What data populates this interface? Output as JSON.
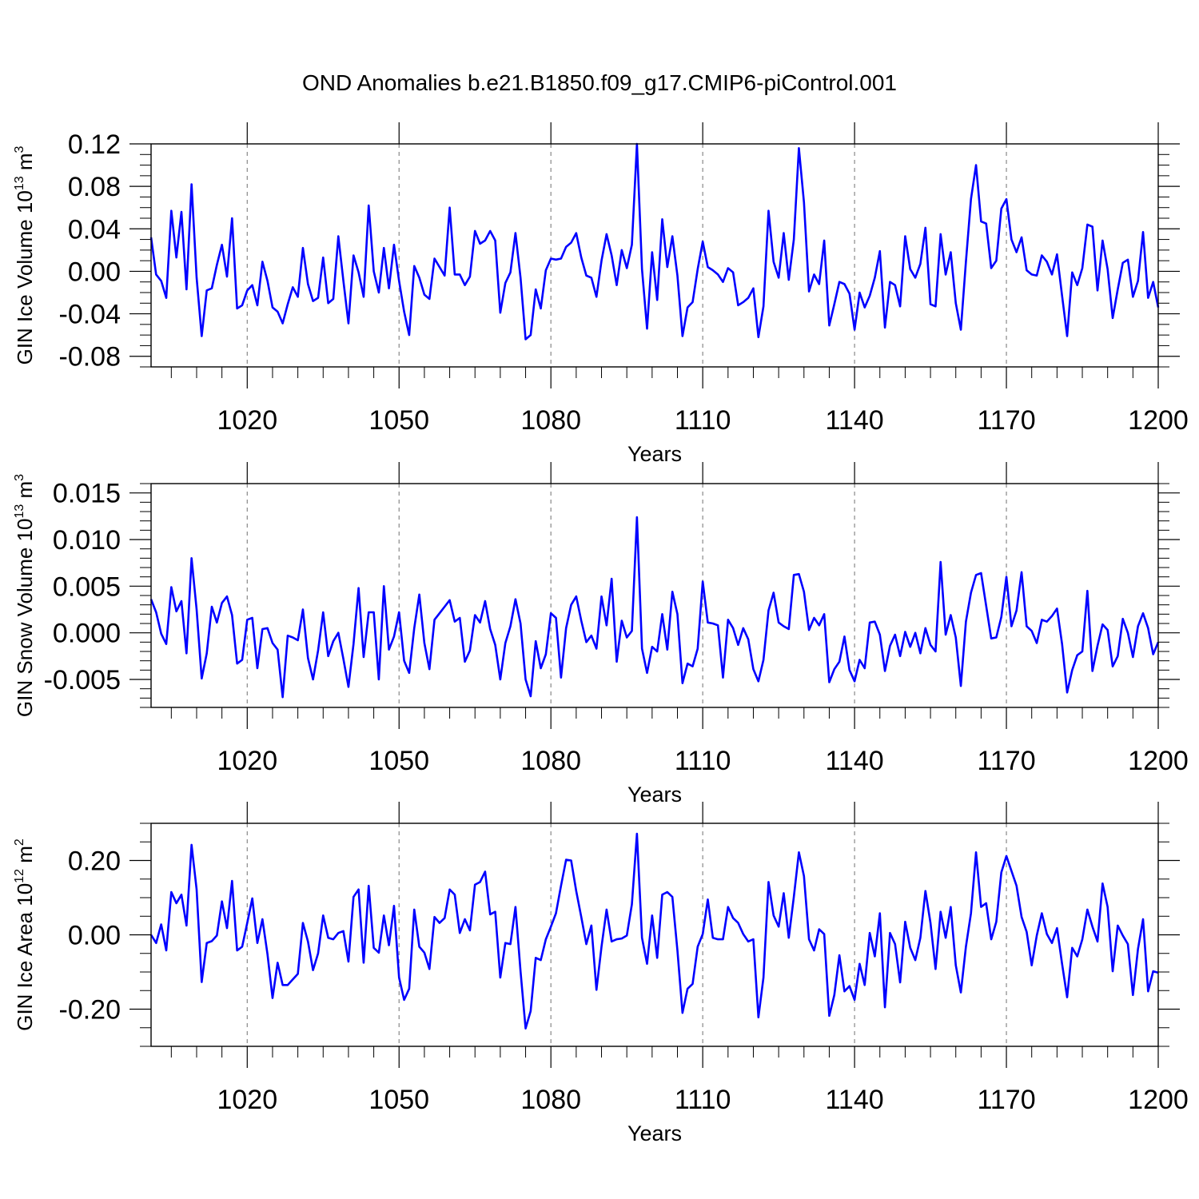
{
  "title": "OND Anomalies b.e21.B1850.f09_g17.CMIP6-piControl.001",
  "chart_data": [
    {
      "type": "line",
      "name": "ice-volume",
      "ylabel": "GIN Ice Volume 10",
      "ylabel_exp": "13",
      "ylabel_unit": " m",
      "ylabel_unit_exp": "3",
      "xlabel": "Years",
      "xlim": [
        1001,
        1200
      ],
      "ylim": [
        -0.09,
        0.12
      ],
      "yticks": [
        -0.08,
        -0.04,
        0.0,
        0.04,
        0.08,
        0.12
      ],
      "ytick_labels": [
        "-0.08",
        "-0.04",
        "0.00",
        "0.04",
        "0.08",
        "0.12"
      ],
      "yminor_step": 0.01,
      "xticks": [
        1020,
        1050,
        1080,
        1110,
        1140,
        1170,
        1200
      ],
      "xtick_labels": [
        "1020",
        "1050",
        "1080",
        "1110",
        "1140",
        "1170",
        "1200"
      ],
      "color": "#0000ff",
      "x_start": 1001,
      "values": [
        0.032,
        -0.003,
        -0.009,
        -0.025,
        0.057,
        0.013,
        0.056,
        -0.017,
        0.082,
        -0.006,
        -0.061,
        -0.018,
        -0.016,
        0.006,
        0.025,
        -0.005,
        0.05,
        -0.035,
        -0.032,
        -0.018,
        -0.013,
        -0.032,
        0.009,
        -0.009,
        -0.034,
        -0.038,
        -0.049,
        -0.031,
        -0.015,
        -0.024,
        0.022,
        -0.012,
        -0.028,
        -0.025,
        0.013,
        -0.03,
        -0.026,
        0.033,
        -0.009,
        -0.049,
        0.015,
        -0.001,
        -0.024,
        0.062,
        0.0,
        -0.02,
        0.022,
        -0.016,
        0.025,
        -0.009,
        -0.038,
        -0.06,
        0.005,
        -0.006,
        -0.022,
        -0.026,
        0.012,
        0.004,
        -0.004,
        0.06,
        -0.003,
        -0.003,
        -0.013,
        -0.005,
        0.038,
        0.026,
        0.029,
        0.038,
        0.029,
        -0.039,
        -0.011,
        -0.001,
        0.036,
        -0.006,
        -0.064,
        -0.06,
        -0.017,
        -0.035,
        0.001,
        0.012,
        0.011,
        0.012,
        0.023,
        0.027,
        0.036,
        0.013,
        -0.004,
        -0.006,
        -0.024,
        0.01,
        0.035,
        0.015,
        -0.013,
        0.02,
        0.003,
        0.025,
        0.12,
        0.002,
        -0.054,
        0.018,
        -0.027,
        0.049,
        0.004,
        0.033,
        -0.004,
        -0.061,
        -0.034,
        -0.029,
        0.002,
        0.028,
        0.004,
        0.001,
        -0.003,
        -0.01,
        0.003,
        -0.001,
        -0.032,
        -0.029,
        -0.025,
        -0.016,
        -0.062,
        -0.033,
        0.057,
        0.009,
        -0.006,
        0.036,
        -0.008,
        0.03,
        0.116,
        0.065,
        -0.019,
        -0.003,
        -0.012,
        0.029,
        -0.051,
        -0.031,
        -0.01,
        -0.012,
        -0.021,
        -0.055,
        -0.02,
        -0.034,
        -0.023,
        -0.006,
        0.019,
        -0.053,
        -0.01,
        -0.013,
        -0.033,
        0.033,
        0.002,
        -0.006,
        0.007,
        0.041,
        -0.031,
        -0.033,
        0.035,
        -0.003,
        0.018,
        -0.03,
        -0.055,
        0.009,
        0.068,
        0.1,
        0.047,
        0.045,
        0.003,
        0.01,
        0.059,
        0.068,
        0.03,
        0.018,
        0.032,
        0.001,
        -0.003,
        -0.004,
        0.015,
        0.009,
        -0.003,
        0.016,
        -0.023,
        -0.061,
        -0.001,
        -0.013,
        0.003,
        0.044,
        0.042,
        -0.018,
        0.029,
        0.002,
        -0.044,
        -0.017,
        0.008,
        0.011,
        -0.024,
        -0.009,
        0.037,
        -0.025,
        -0.01,
        -0.034
      ]
    },
    {
      "type": "line",
      "name": "snow-volume",
      "ylabel": "GIN Snow Volume 10",
      "ylabel_exp": "13",
      "ylabel_unit": " m",
      "ylabel_unit_exp": "3",
      "xlabel": "Years",
      "xlim": [
        1001,
        1200
      ],
      "ylim": [
        -0.008,
        0.016
      ],
      "yticks": [
        -0.005,
        0.0,
        0.005,
        0.01,
        0.015
      ],
      "ytick_labels": [
        "-0.005",
        "0.000",
        "0.005",
        "0.010",
        "0.015"
      ],
      "yminor_step": 0.001,
      "xticks": [
        1020,
        1050,
        1080,
        1110,
        1140,
        1170,
        1200
      ],
      "xtick_labels": [
        "1020",
        "1050",
        "1080",
        "1110",
        "1140",
        "1170",
        "1200"
      ],
      "color": "#0000ff",
      "x_start": 1001,
      "values": [
        0.0036,
        0.0022,
        -0.0001,
        -0.0012,
        0.0049,
        0.0023,
        0.0034,
        -0.0022,
        0.008,
        0.0025,
        -0.0049,
        -0.0022,
        0.0028,
        0.0011,
        0.0032,
        0.0039,
        0.0019,
        -0.0033,
        -0.0029,
        0.0014,
        0.0016,
        -0.0038,
        0.0004,
        0.0005,
        -0.0011,
        -0.0018,
        -0.0069,
        -0.0003,
        -0.0005,
        -0.0008,
        0.0025,
        -0.0027,
        -0.005,
        -0.0019,
        0.0022,
        -0.0025,
        -0.0009,
        0.0,
        -0.0028,
        -0.0058,
        -0.0012,
        0.0048,
        -0.0026,
        0.0022,
        0.0022,
        -0.005,
        0.005,
        -0.0018,
        -0.0004,
        0.0022,
        -0.003,
        -0.0043,
        0.0005,
        0.0041,
        -0.0011,
        -0.0039,
        0.0014,
        0.0021,
        0.0028,
        0.0035,
        0.0012,
        0.0016,
        -0.0031,
        -0.0019,
        0.0019,
        0.0011,
        0.0034,
        0.0004,
        -0.0013,
        -0.005,
        -0.0011,
        0.0007,
        0.0036,
        0.001,
        -0.005,
        -0.0068,
        -0.0009,
        -0.0038,
        -0.0023,
        0.0021,
        0.0016,
        -0.0048,
        0.0005,
        0.003,
        0.0039,
        0.0013,
        -0.001,
        -0.0003,
        -0.0017,
        0.0039,
        0.0008,
        0.0058,
        -0.0031,
        0.0013,
        -0.0005,
        0.0002,
        0.0124,
        -0.0017,
        -0.0043,
        -0.0015,
        -0.002,
        0.002,
        -0.0018,
        0.0044,
        0.002,
        -0.0054,
        -0.0033,
        -0.0036,
        -0.0017,
        0.0055,
        0.0011,
        0.001,
        0.0008,
        -0.0048,
        0.0014,
        0.0005,
        -0.0013,
        0.0005,
        -0.0007,
        -0.0039,
        -0.0052,
        -0.0029,
        0.0024,
        0.0043,
        0.0011,
        0.0007,
        0.0004,
        0.0062,
        0.0063,
        0.0044,
        0.0003,
        0.0016,
        0.0008,
        0.002,
        -0.0053,
        -0.0039,
        -0.0031,
        -0.0004,
        -0.004,
        -0.0052,
        -0.0029,
        -0.0038,
        0.0011,
        0.0012,
        -0.0002,
        -0.0041,
        -0.0014,
        -0.0002,
        -0.0025,
        0.0001,
        -0.0015,
        0.0,
        -0.0022,
        0.0005,
        -0.0013,
        -0.002,
        0.0076,
        -0.0002,
        0.0019,
        -0.0005,
        -0.0057,
        0.0012,
        0.0043,
        0.0062,
        0.0064,
        0.0029,
        -0.0006,
        -0.0005,
        0.0017,
        0.006,
        0.0007,
        0.0024,
        0.0065,
        0.0007,
        0.0002,
        -0.0011,
        0.0014,
        0.0012,
        0.0018,
        0.0026,
        -0.0012,
        -0.0064,
        -0.004,
        -0.0024,
        -0.002,
        0.0045,
        -0.0041,
        -0.0014,
        0.0009,
        0.0003,
        -0.0036,
        -0.0025,
        0.0015,
        0.0,
        -0.0026,
        0.0007,
        0.0021,
        0.0005,
        -0.0023,
        -0.001
      ]
    },
    {
      "type": "line",
      "name": "ice-area",
      "ylabel": "GIN Ice Area 10",
      "ylabel_exp": "12",
      "ylabel_unit": " m",
      "ylabel_unit_exp": "2",
      "xlabel": "Years",
      "xlim": [
        1001,
        1200
      ],
      "ylim": [
        -0.3,
        0.3
      ],
      "yticks": [
        -0.2,
        0.0,
        0.2
      ],
      "ytick_labels": [
        "-0.20",
        "0.00",
        "0.20"
      ],
      "yminor_step": 0.05,
      "xticks": [
        1020,
        1050,
        1080,
        1110,
        1140,
        1170,
        1200
      ],
      "xtick_labels": [
        "1020",
        "1050",
        "1080",
        "1110",
        "1140",
        "1170",
        "1200"
      ],
      "color": "#0000ff",
      "x_start": 1001,
      "values": [
        0.0,
        -0.022,
        0.028,
        -0.042,
        0.115,
        0.085,
        0.108,
        0.025,
        0.242,
        0.122,
        -0.127,
        -0.022,
        -0.017,
        -0.002,
        0.09,
        0.018,
        0.145,
        -0.042,
        -0.032,
        0.032,
        0.098,
        -0.022,
        0.042,
        -0.052,
        -0.17,
        -0.075,
        -0.135,
        -0.135,
        -0.12,
        -0.105,
        0.032,
        -0.018,
        -0.095,
        -0.05,
        0.052,
        -0.008,
        -0.012,
        0.005,
        0.01,
        -0.072,
        0.102,
        0.122,
        -0.075,
        0.132,
        -0.035,
        -0.048,
        0.052,
        -0.028,
        0.078,
        -0.115,
        -0.175,
        -0.145,
        0.068,
        -0.032,
        -0.048,
        -0.092,
        0.048,
        0.032,
        0.045,
        0.122,
        0.108,
        0.005,
        0.042,
        0.012,
        0.135,
        0.142,
        0.17,
        0.055,
        0.062,
        -0.115,
        -0.022,
        -0.025,
        0.075,
        -0.098,
        -0.252,
        -0.205,
        -0.062,
        -0.068,
        -0.012,
        0.022,
        0.058,
        0.132,
        0.202,
        0.2,
        0.118,
        0.048,
        -0.025,
        0.025,
        -0.148,
        -0.032,
        0.068,
        -0.018,
        -0.012,
        -0.01,
        -0.002,
        0.082,
        0.272,
        -0.008,
        -0.078,
        0.052,
        -0.062,
        0.108,
        0.115,
        0.102,
        -0.042,
        -0.21,
        -0.145,
        -0.132,
        -0.032,
        0.002,
        0.095,
        -0.008,
        -0.012,
        -0.012,
        0.075,
        0.045,
        0.032,
        0.002,
        -0.018,
        -0.012,
        -0.222,
        -0.115,
        0.142,
        0.052,
        0.022,
        0.112,
        -0.008,
        0.102,
        0.222,
        0.158,
        -0.012,
        -0.042,
        0.015,
        0.002,
        -0.218,
        -0.162,
        -0.055,
        -0.152,
        -0.138,
        -0.175,
        -0.078,
        -0.135,
        0.005,
        -0.058,
        0.058,
        -0.195,
        0.005,
        -0.025,
        -0.128,
        0.035,
        -0.035,
        -0.068,
        -0.008,
        0.118,
        0.032,
        -0.092,
        0.062,
        -0.008,
        0.075,
        -0.082,
        -0.155,
        -0.032,
        0.058,
        0.222,
        0.075,
        0.085,
        -0.012,
        0.035,
        0.168,
        0.212,
        0.172,
        0.132,
        0.048,
        0.008,
        -0.082,
        -0.002,
        0.058,
        0.002,
        -0.022,
        0.018,
        -0.078,
        -0.168,
        -0.035,
        -0.058,
        -0.012,
        0.068,
        0.022,
        -0.018,
        0.138,
        0.075,
        -0.098,
        0.025,
        -0.002,
        -0.025,
        -0.162,
        -0.038,
        0.042,
        -0.152,
        -0.098,
        -0.102
      ]
    }
  ]
}
